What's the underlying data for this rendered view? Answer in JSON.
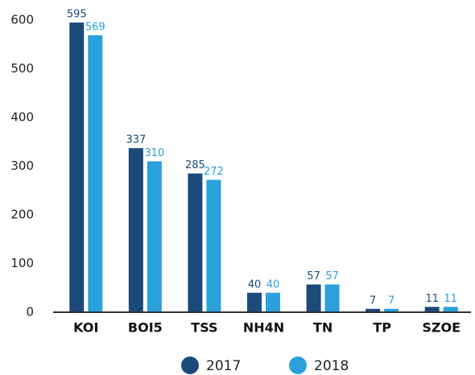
{
  "chart_data": {
    "type": "bar",
    "categories": [
      "KOI",
      "BOI5",
      "TSS",
      "NH4N",
      "TN",
      "TP",
      "SZOE"
    ],
    "series": [
      {
        "name": "2017",
        "color": "#1b4a7a",
        "values": [
          595,
          337,
          285,
          40,
          57,
          7,
          11
        ]
      },
      {
        "name": "2018",
        "color": "#2aa0dc",
        "values": [
          569,
          310,
          272,
          40,
          57,
          7,
          11
        ]
      }
    ],
    "ylim": [
      0,
      600
    ],
    "yticks": [
      0,
      100,
      200,
      300,
      400,
      500,
      600
    ],
    "grid": false,
    "legend": "bottom"
  }
}
